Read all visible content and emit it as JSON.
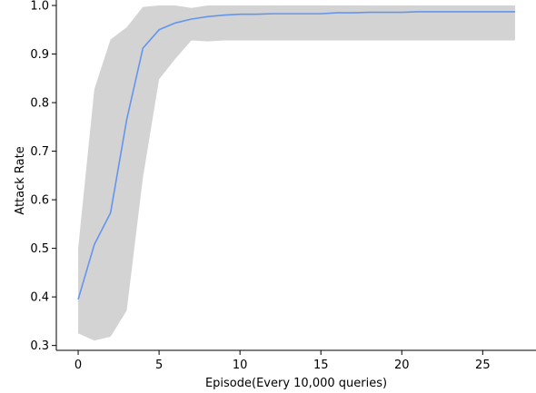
{
  "chart_data": {
    "type": "line",
    "title": "",
    "xlabel": "Episode(Every 10,000 queries)",
    "ylabel": "Attack Rate",
    "xlim": [
      -1.35,
      28.35
    ],
    "ylim": [
      0.29,
      1.015
    ],
    "xticks": [
      0,
      5,
      10,
      15,
      20,
      25
    ],
    "yticks": [
      0.3,
      0.4,
      0.5,
      0.6,
      0.7,
      0.8,
      0.9,
      1.0
    ],
    "xtick_labels": [
      "0",
      "5",
      "10",
      "15",
      "20",
      "25"
    ],
    "ytick_labels": [
      "0.3",
      "0.4",
      "0.5",
      "0.6",
      "0.7",
      "0.8",
      "0.9",
      "1.0"
    ],
    "grid": false,
    "colors": {
      "line": "#6495ed",
      "band": "#d3d3d3",
      "axis": "#000000"
    },
    "series": [
      {
        "x": [
          0,
          1,
          2,
          3,
          4,
          5,
          6,
          7,
          8,
          9,
          10,
          11,
          12,
          13,
          14,
          15,
          16,
          17,
          18,
          19,
          20,
          21,
          22,
          23,
          24,
          25,
          26,
          27
        ],
        "mean": [
          0.395,
          0.508,
          0.573,
          0.765,
          0.912,
          0.95,
          0.964,
          0.972,
          0.977,
          0.98,
          0.982,
          0.982,
          0.983,
          0.983,
          0.983,
          0.983,
          0.985,
          0.985,
          0.986,
          0.986,
          0.986,
          0.987,
          0.987,
          0.987,
          0.987,
          0.987,
          0.987,
          0.987
        ],
        "lower": [
          0.325,
          0.31,
          0.318,
          0.372,
          0.645,
          0.848,
          0.89,
          0.928,
          0.926,
          0.928,
          0.928,
          0.928,
          0.928,
          0.928,
          0.928,
          0.928,
          0.928,
          0.928,
          0.928,
          0.928,
          0.928,
          0.928,
          0.928,
          0.928,
          0.928,
          0.928,
          0.928,
          0.928
        ],
        "upper": [
          0.5,
          0.828,
          0.93,
          0.955,
          0.997,
          1.0,
          1.0,
          0.995,
          1.0,
          1.0,
          1.0,
          1.0,
          1.0,
          1.0,
          1.0,
          1.0,
          1.0,
          1.0,
          1.0,
          1.0,
          1.0,
          1.0,
          1.0,
          1.0,
          1.0,
          1.0,
          1.0,
          1.0
        ]
      }
    ]
  }
}
